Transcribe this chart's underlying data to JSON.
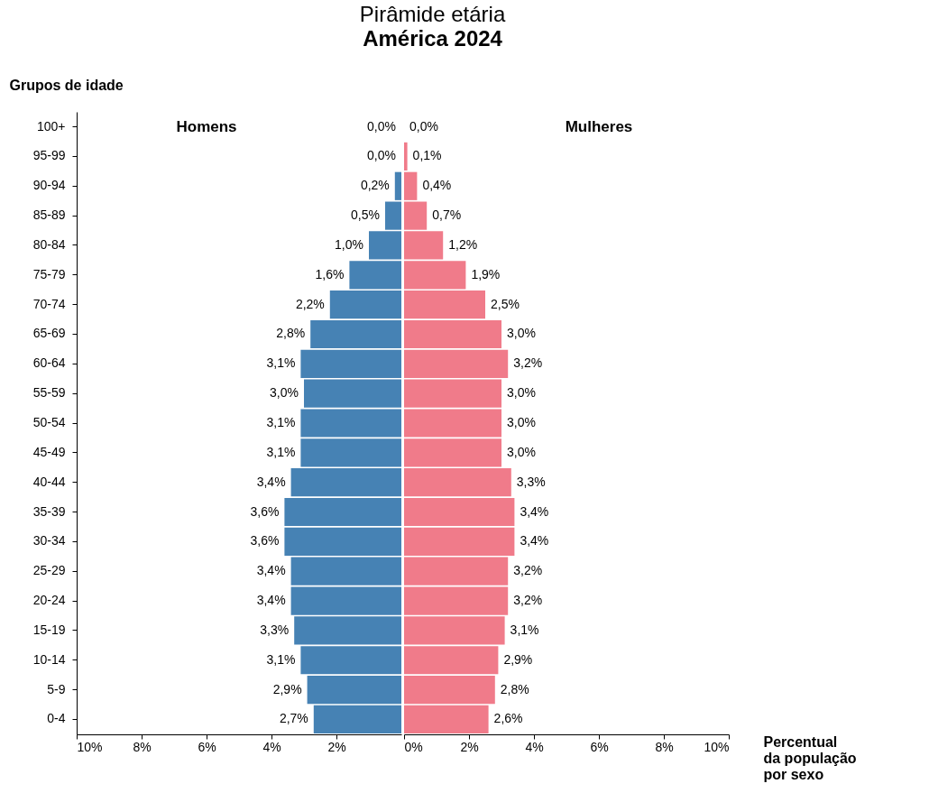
{
  "chart_data": [
    {
      "type": "bar",
      "orientation": "horizontal",
      "title": "Pirâmide etária",
      "subtitle": "América 2024",
      "ylabel": "Grupos de idade",
      "categories": [
        "100+",
        "95-99",
        "90-94",
        "85-89",
        "80-84",
        "75-79",
        "70-74",
        "65-69",
        "60-64",
        "55-59",
        "50-54",
        "45-49",
        "40-44",
        "35-39",
        "30-34",
        "25-29",
        "20-24",
        "15-19",
        "10-14",
        "5-9",
        "0-4"
      ],
      "series": [
        {
          "name": "Homens",
          "color": "#4682b4",
          "values": [
            0.0,
            0.0,
            0.2,
            0.5,
            1.0,
            1.6,
            2.2,
            2.8,
            3.1,
            3.0,
            3.1,
            3.1,
            3.4,
            3.6,
            3.6,
            3.4,
            3.4,
            3.3,
            3.1,
            2.9,
            2.7
          ],
          "value_labels": [
            "0,0%",
            "0,0%",
            "0,2%",
            "0,5%",
            "1,0%",
            "1,6%",
            "2,2%",
            "2,8%",
            "3,1%",
            "3,0%",
            "3,1%",
            "3,1%",
            "3,4%",
            "3,6%",
            "3,6%",
            "3,4%",
            "3,4%",
            "3,3%",
            "3,1%",
            "2,9%",
            "2,7%"
          ]
        }
      ],
      "xlim": [
        10,
        0
      ],
      "xticks": [
        {
          "value": 10,
          "label": "10%"
        },
        {
          "value": 8,
          "label": "8%"
        },
        {
          "value": 6,
          "label": "6%"
        },
        {
          "value": 4,
          "label": "4%"
        },
        {
          "value": 2,
          "label": "2%"
        }
      ],
      "grid": false
    },
    {
      "type": "bar",
      "orientation": "horizontal",
      "xlabel": "Percentual da população por sexo",
      "categories": [
        "100+",
        "95-99",
        "90-94",
        "85-89",
        "80-84",
        "75-79",
        "70-74",
        "65-69",
        "60-64",
        "55-59",
        "50-54",
        "45-49",
        "40-44",
        "35-39",
        "30-34",
        "25-29",
        "20-24",
        "15-19",
        "10-14",
        "5-9",
        "0-4"
      ],
      "series": [
        {
          "name": "Mulheres",
          "color": "#f07b8a",
          "values": [
            0.0,
            0.1,
            0.4,
            0.7,
            1.2,
            1.9,
            2.5,
            3.0,
            3.2,
            3.0,
            3.0,
            3.0,
            3.3,
            3.4,
            3.4,
            3.2,
            3.2,
            3.1,
            2.9,
            2.8,
            2.6
          ],
          "value_labels": [
            "0,0%",
            "0,1%",
            "0,4%",
            "0,7%",
            "1,2%",
            "1,9%",
            "2,5%",
            "3,0%",
            "3,2%",
            "3,0%",
            "3,0%",
            "3,0%",
            "3,3%",
            "3,4%",
            "3,4%",
            "3,2%",
            "3,2%",
            "3,1%",
            "2,9%",
            "2,8%",
            "2,6%"
          ]
        }
      ],
      "xlim": [
        0,
        10
      ],
      "xticks": [
        {
          "value": 0,
          "label": "0%"
        },
        {
          "value": 2,
          "label": "2%"
        },
        {
          "value": 4,
          "label": "4%"
        },
        {
          "value": 6,
          "label": "6%"
        },
        {
          "value": 8,
          "label": "8%"
        },
        {
          "value": 10,
          "label": "10%"
        }
      ],
      "tick_labels": "x",
      "grid": false
    }
  ]
}
